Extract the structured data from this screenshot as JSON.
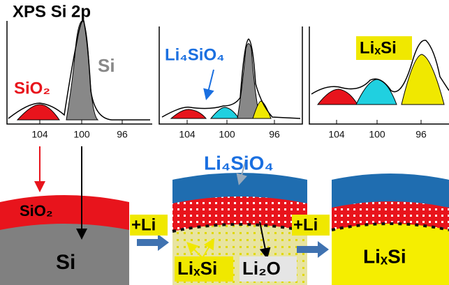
{
  "title": "XPS Si 2p",
  "panels": [
    {
      "ticks": [
        "104",
        "100",
        "96"
      ],
      "labels": [
        "SiO₂",
        "Si"
      ]
    },
    {
      "ticks": [
        "104",
        "100",
        "96"
      ],
      "labels": [
        "Li₄SiO₄"
      ]
    },
    {
      "ticks": [
        "104",
        "100",
        "96"
      ],
      "labels": [
        "LiₓSi"
      ]
    }
  ],
  "schematic": {
    "left": [
      "SiO₂",
      "Si"
    ],
    "step1": "+Li",
    "middle": [
      "Li₄SiO₄",
      "LiₓSi",
      "Li₂O"
    ],
    "step2": "+Li",
    "right": [
      "LiₓSi"
    ]
  }
}
